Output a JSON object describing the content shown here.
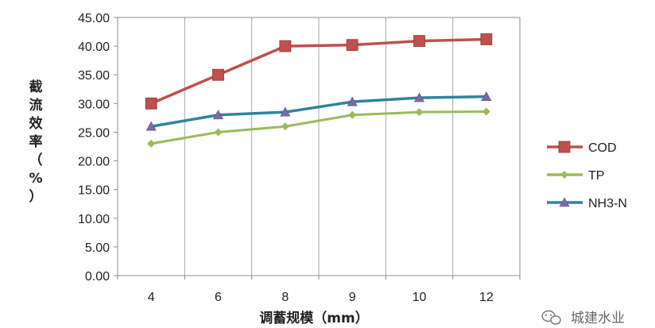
{
  "chart_data": {
    "type": "line",
    "categories": [
      "4",
      "6",
      "8",
      "9",
      "10",
      "12"
    ],
    "series": [
      {
        "name": "COD",
        "values": [
          30.0,
          35.0,
          40.0,
          40.2,
          40.9,
          41.2
        ],
        "color": "#c0504d",
        "marker": "square"
      },
      {
        "name": "TP",
        "values": [
          23.0,
          25.0,
          26.0,
          28.0,
          28.5,
          28.6
        ],
        "color": "#9bbb59",
        "marker": "diamond"
      },
      {
        "name": "NH3-N",
        "values": [
          26.0,
          28.0,
          28.5,
          30.3,
          31.0,
          31.2
        ],
        "color": "#31849b",
        "marker": "triangle"
      }
    ],
    "ylim": [
      0,
      45
    ],
    "yticks": [
      "0.00",
      "5.00",
      "10.00",
      "15.00",
      "20.00",
      "25.00",
      "30.00",
      "35.00",
      "40.00",
      "45.00"
    ],
    "xlabel": "调蓄规模（mm）",
    "ylabel_chars": [
      "截",
      "流",
      "效",
      "率",
      "（",
      "%",
      "）"
    ],
    "grid": "vertical",
    "legend_position": "right"
  },
  "watermark": {
    "text": "城建水业",
    "icon": "wechat-icon"
  }
}
